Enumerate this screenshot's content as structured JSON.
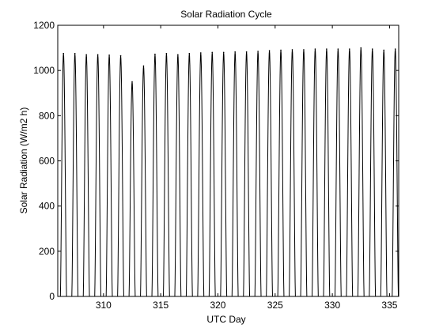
{
  "chart_data": {
    "type": "line",
    "title": "Solar Radiation Cycle",
    "xlabel": "UTC Day",
    "ylabel": "Solar Radiation (W/m2 h)",
    "xlim": [
      306.0,
      335.8
    ],
    "ylim": [
      0,
      1200
    ],
    "xticks": [
      310,
      315,
      320,
      325,
      330,
      335
    ],
    "yticks": [
      0,
      200,
      400,
      600,
      800,
      1000,
      1200
    ],
    "grid": false,
    "series": [
      {
        "color": "#000000",
        "daily_peaks": [
          {
            "x": 306.5,
            "y": 1075
          },
          {
            "x": 307.5,
            "y": 1075
          },
          {
            "x": 308.5,
            "y": 1070
          },
          {
            "x": 309.5,
            "y": 1070
          },
          {
            "x": 310.5,
            "y": 1068
          },
          {
            "x": 311.5,
            "y": 1065
          },
          {
            "x": 312.5,
            "y": 950
          },
          {
            "x": 313.5,
            "y": 1020
          },
          {
            "x": 314.5,
            "y": 1072
          },
          {
            "x": 315.5,
            "y": 1075
          },
          {
            "x": 316.5,
            "y": 1070
          },
          {
            "x": 317.5,
            "y": 1075
          },
          {
            "x": 318.5,
            "y": 1078
          },
          {
            "x": 319.5,
            "y": 1080
          },
          {
            "x": 320.5,
            "y": 1080
          },
          {
            "x": 321.5,
            "y": 1082
          },
          {
            "x": 322.5,
            "y": 1082
          },
          {
            "x": 323.5,
            "y": 1085
          },
          {
            "x": 324.5,
            "y": 1088
          },
          {
            "x": 325.5,
            "y": 1090
          },
          {
            "x": 326.5,
            "y": 1092
          },
          {
            "x": 327.5,
            "y": 1092
          },
          {
            "x": 328.5,
            "y": 1095
          },
          {
            "x": 329.5,
            "y": 1095
          },
          {
            "x": 330.5,
            "y": 1095
          },
          {
            "x": 331.5,
            "y": 1095
          },
          {
            "x": 332.5,
            "y": 1100
          },
          {
            "x": 333.5,
            "y": 1095
          },
          {
            "x": 334.5,
            "y": 1090
          },
          {
            "x": 335.5,
            "y": 1095
          }
        ]
      }
    ]
  }
}
